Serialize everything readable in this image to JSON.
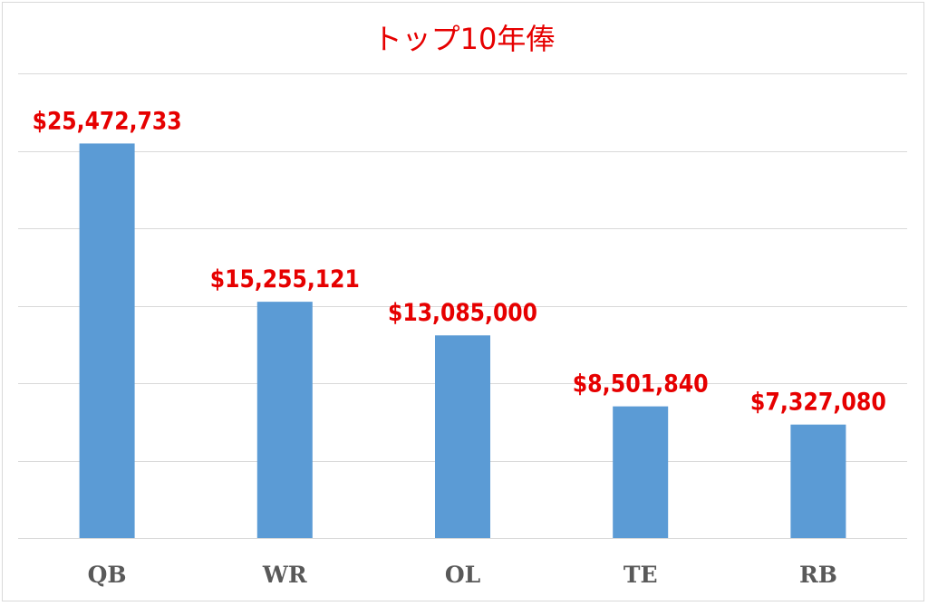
{
  "chart_data": {
    "type": "bar",
    "title": "トップ10年俸",
    "xlabel": "",
    "ylabel": "",
    "categories": [
      "QB",
      "WR",
      "OL",
      "TE",
      "RB"
    ],
    "values": [
      25472733,
      15255121,
      13085000,
      8501840,
      7327080
    ],
    "value_labels": [
      "$25,472,733",
      "$15,255,121",
      "$13,085,000",
      "$8,501,840",
      "$7,327,080"
    ],
    "ylim": [
      0,
      30000000
    ],
    "grid": true,
    "legend": "none",
    "colors": {
      "bar": "#5b9bd5",
      "value_label": "#e60000",
      "title": "#e60000",
      "category_label": "#595959",
      "gridline": "#d9d9d9"
    }
  }
}
